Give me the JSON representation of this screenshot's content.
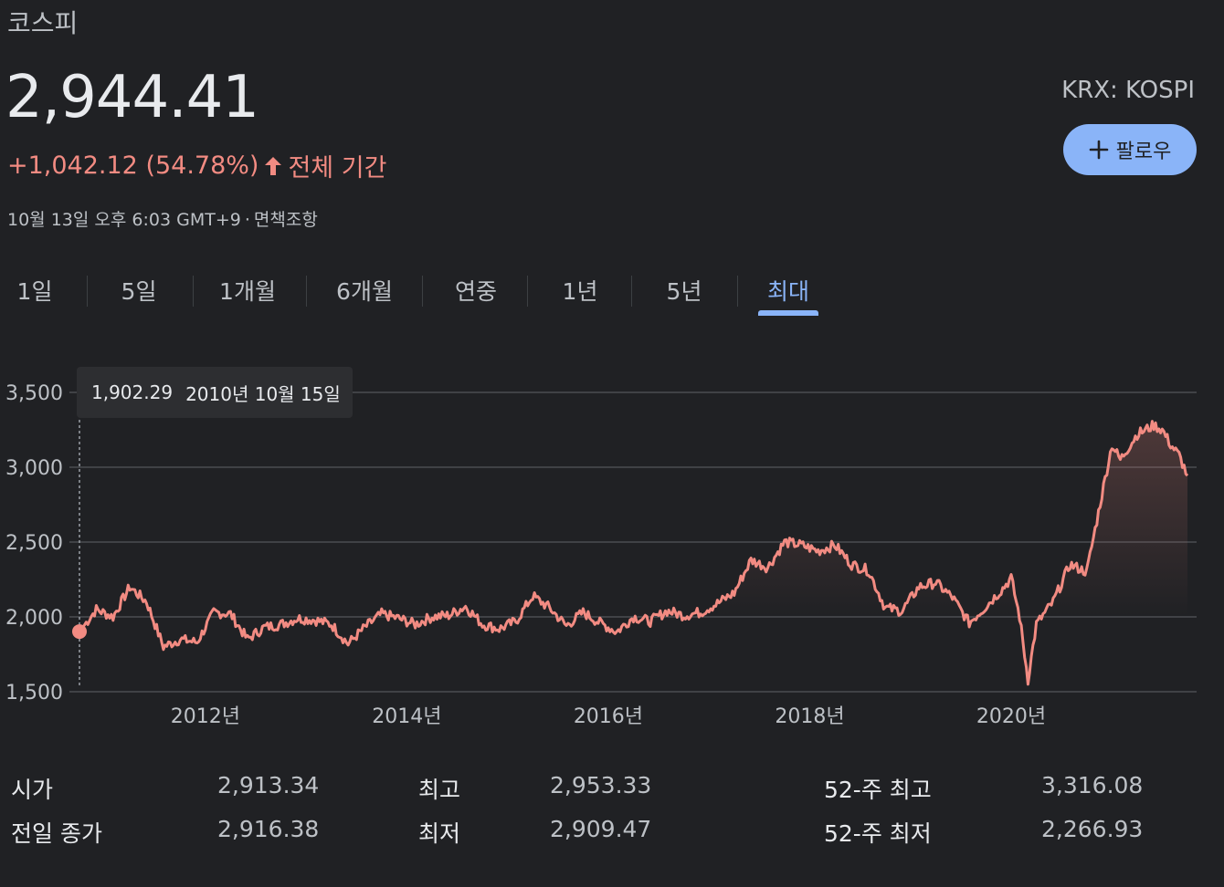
{
  "header": {
    "index_name": "코스피",
    "price": "2,944.41",
    "change": "+1,042.12 (54.78%)",
    "period": "전체 기간",
    "timestamp": "10월 13일 오후 6:03 GMT+9",
    "disclaimer": "면책조항",
    "exchange": "KRX: KOSPI",
    "follow_label": "팔로우"
  },
  "tabs": [
    {
      "label": "1일"
    },
    {
      "label": "5일"
    },
    {
      "label": "1개월"
    },
    {
      "label": "6개월"
    },
    {
      "label": "연중"
    },
    {
      "label": "1년"
    },
    {
      "label": "5년"
    },
    {
      "label": "최대",
      "active": true
    }
  ],
  "tooltip": {
    "value": "1,902.29",
    "date": "2010년 10월 15일"
  },
  "colors": {
    "line": "#f28b82",
    "accent": "#8ab4f8",
    "background": "#202124"
  },
  "chart_data": {
    "type": "line",
    "x_ticks": [
      "2012년",
      "2014년",
      "2016년",
      "2018년",
      "2020년"
    ],
    "y_ticks": [
      "3,500",
      "3,000",
      "2,500",
      "2,000",
      "1,500"
    ],
    "ylim": [
      1500,
      3500
    ],
    "xlim": [
      "2010-10",
      "2021-10"
    ],
    "grid": true,
    "legend": "none",
    "series": [
      {
        "x": [
          "2010-10",
          "2010-12",
          "2011-02",
          "2011-04",
          "2011-06",
          "2011-08",
          "2011-10",
          "2011-12",
          "2012-02",
          "2012-04",
          "2012-06",
          "2012-08",
          "2012-10",
          "2012-12",
          "2013-02",
          "2013-04",
          "2013-06",
          "2013-08",
          "2013-10",
          "2013-12",
          "2014-02",
          "2014-04",
          "2014-06",
          "2014-08",
          "2014-10",
          "2014-12",
          "2015-02",
          "2015-04",
          "2015-06",
          "2015-08",
          "2015-10",
          "2015-12",
          "2016-02",
          "2016-04",
          "2016-06",
          "2016-08",
          "2016-10",
          "2016-12",
          "2017-02",
          "2017-04",
          "2017-06",
          "2017-08",
          "2017-10",
          "2017-12",
          "2018-02",
          "2018-04",
          "2018-06",
          "2018-08",
          "2018-10",
          "2018-12",
          "2019-02",
          "2019-04",
          "2019-06",
          "2019-08",
          "2019-10",
          "2019-12",
          "2020-01",
          "2020-02",
          "2020-03",
          "2020-04",
          "2020-06",
          "2020-08",
          "2020-10",
          "2020-12",
          "2021-01",
          "2021-02",
          "2021-04",
          "2021-06",
          "2021-07",
          "2021-08",
          "2021-09",
          "2021-10"
        ],
        "values": [
          1902,
          2050,
          2000,
          2200,
          2100,
          1800,
          1850,
          1830,
          2030,
          2020,
          1850,
          1930,
          1950,
          1990,
          1980,
          1950,
          1820,
          1930,
          2020,
          1990,
          1950,
          2000,
          2010,
          2070,
          1950,
          1920,
          1970,
          2140,
          2060,
          1940,
          2030,
          1960,
          1900,
          2000,
          1970,
          2040,
          2010,
          2030,
          2090,
          2160,
          2380,
          2330,
          2500,
          2480,
          2440,
          2480,
          2350,
          2310,
          2060,
          2040,
          2200,
          2230,
          2130,
          1960,
          2070,
          2190,
          2260,
          2000,
          1580,
          1950,
          2100,
          2350,
          2300,
          2870,
          3150,
          3050,
          3220,
          3280,
          3250,
          3150,
          3080,
          2944
        ]
      }
    ]
  },
  "stats": {
    "open": {
      "label": "시가",
      "value": "2,913.34"
    },
    "prev_close": {
      "label": "전일 종가",
      "value": "2,916.38"
    },
    "high": {
      "label": "최고",
      "value": "2,953.33"
    },
    "low": {
      "label": "최저",
      "value": "2,909.47"
    },
    "high_52w": {
      "label": "52-주 최고",
      "value": "3,316.08"
    },
    "low_52w": {
      "label": "52-주 최저",
      "value": "2,266.93"
    }
  }
}
